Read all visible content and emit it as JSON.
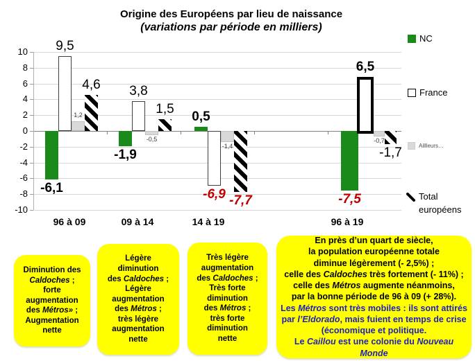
{
  "title": {
    "line1": "Origine des Européens par lieu de naissance",
    "line2": "(variations par période en milliers)"
  },
  "legend": {
    "nc": "NC",
    "france": "France",
    "ailleurs": "Aillleurs…",
    "total_line1": "Total",
    "total_line2": "européens"
  },
  "colors": {
    "nc_green": "#1a8a1a",
    "ailleurs_gray": "#d9d9d9",
    "red_label": "#c00000",
    "blue_text": "#2020c0",
    "note_yellow": "#ffff00"
  },
  "chart_data": {
    "type": "bar",
    "title": "Origine des Européens par lieu de naissance",
    "subtitle": "(variations par période en milliers)",
    "categories": [
      "96 à 09",
      "09 à 14",
      "14 à 19",
      "96 à 19"
    ],
    "series": [
      {
        "name": "NC",
        "color": "#1a8a1a",
        "values": [
          -6.1,
          -1.9,
          0.5,
          -7.5
        ],
        "labels": [
          "-6,1",
          "-1,9",
          "0,5",
          "-7,5"
        ],
        "label_styles": [
          "bold",
          "bold",
          "bold",
          "red"
        ]
      },
      {
        "name": "France",
        "color": "#ffffff",
        "values": [
          9.5,
          3.8,
          -6.9,
          6.5
        ],
        "labels": [
          "9,5",
          "3,8",
          "-6,9",
          "6,5"
        ],
        "label_styles": [
          "big",
          "big",
          "red",
          "bold"
        ]
      },
      {
        "name": "Aillleurs…",
        "color": "#d9d9d9",
        "values": [
          1.2,
          -0.5,
          -1.4,
          -0.7
        ],
        "labels": [
          "1,2",
          "-0,5",
          "-1,4",
          "-0,7"
        ],
        "label_styles": [
          "small",
          "small",
          "small",
          "small"
        ]
      },
      {
        "name": "Total européens",
        "pattern": "diagonal-stripes",
        "values": [
          4.6,
          1.5,
          -7.7,
          -1.7
        ],
        "labels": [
          "4,6",
          "1,5",
          "-7,7",
          "-1,7"
        ],
        "label_styles": [
          "big",
          "big",
          "red",
          "big"
        ]
      }
    ],
    "ylim": [
      -10,
      10
    ],
    "ytick_step": 2,
    "yticks": [
      "10",
      "8",
      "6",
      "4",
      "2",
      "0",
      "-2",
      "-4",
      "-6",
      "-8",
      "-10"
    ],
    "grid": true,
    "legend_position": "right",
    "highlight": {
      "series_index": 1,
      "group_index": 3
    }
  },
  "boxes": [
    {
      "segments": [
        {
          "t": "Diminution des"
        },
        {
          "br": true
        },
        {
          "t": "Caldoches",
          "i": true
        },
        {
          "t": " ;"
        },
        {
          "br": true
        },
        {
          "t": "forte"
        },
        {
          "br": true
        },
        {
          "t": "augmentation"
        },
        {
          "br": true
        },
        {
          "t": "des  "
        },
        {
          "t": "Métros»",
          "i": true
        },
        {
          "t": " ;"
        },
        {
          "br": true
        },
        {
          "t": "Augmentation"
        },
        {
          "br": true
        },
        {
          "t": "nette"
        }
      ]
    },
    {
      "segments": [
        {
          "t": "Légère"
        },
        {
          "br": true
        },
        {
          "t": "diminution"
        },
        {
          "br": true
        },
        {
          "t": "des "
        },
        {
          "t": "Caldoches",
          "i": true
        },
        {
          "t": " ;"
        },
        {
          "br": true
        },
        {
          "t": "Légère"
        },
        {
          "br": true
        },
        {
          "t": "augmentation"
        },
        {
          "br": true
        },
        {
          "t": "des "
        },
        {
          "t": "Métros",
          "i": true
        },
        {
          "t": "  ;"
        },
        {
          "br": true
        },
        {
          "t": "très légère"
        },
        {
          "br": true
        },
        {
          "t": "augmentation"
        },
        {
          "br": true
        },
        {
          "t": "nette"
        }
      ]
    },
    {
      "segments": [
        {
          "t": "Très légère"
        },
        {
          "br": true
        },
        {
          "t": "augmentation"
        },
        {
          "br": true
        },
        {
          "t": "des "
        },
        {
          "t": "Caldoches",
          "i": true
        },
        {
          "t": " ;"
        },
        {
          "br": true
        },
        {
          "t": "Très forte"
        },
        {
          "br": true
        },
        {
          "t": "diminution"
        },
        {
          "br": true
        },
        {
          "t": "des "
        },
        {
          "t": "Métros",
          "i": true
        },
        {
          "t": " ;"
        },
        {
          "br": true
        },
        {
          "t": "très forte"
        },
        {
          "br": true
        },
        {
          "t": "diminution"
        },
        {
          "br": true
        },
        {
          "t": "nette"
        }
      ]
    },
    {
      "segments": [
        {
          "t": "En près d’un quart de siècle,"
        },
        {
          "br": true
        },
        {
          "t": "la population européenne totale"
        },
        {
          "br": true
        },
        {
          "t": "diminue légèrement (- 2,5%) ;"
        },
        {
          "br": true
        },
        {
          "t": "celle des "
        },
        {
          "t": "Caldoches",
          "i": true
        },
        {
          "t": " très fortement (- 11%) ;"
        },
        {
          "br": true
        },
        {
          "t": "celle des "
        },
        {
          "t": "Métros",
          "i": true
        },
        {
          "t": " augmente néanmoins,"
        },
        {
          "br": true
        },
        {
          "t": "par la bonne période de 96 à 09 (+ 28%)."
        },
        {
          "br": true
        },
        {
          "t": "Les ",
          "c": "#2020c0"
        },
        {
          "t": "Métros",
          "i": true,
          "c": "#2020c0"
        },
        {
          "t": " sont très mobiles : ils sont attirés",
          "c": "#2020c0"
        },
        {
          "br": true
        },
        {
          "t": "par ",
          "c": "#2020c0"
        },
        {
          "t": "l’Eldorado",
          "i": true,
          "c": "#2020c0"
        },
        {
          "t": ", mais fuient en temps de crise",
          "c": "#2020c0"
        },
        {
          "br": true
        },
        {
          "t": "(économique et politique.",
          "c": "#2020c0"
        },
        {
          "br": true
        },
        {
          "t": "Le ",
          "c": "#2020c0"
        },
        {
          "t": "Caillou",
          "i": true,
          "c": "#2020c0"
        },
        {
          "t": " est une colonie du ",
          "c": "#2020c0"
        },
        {
          "t": "Nouveau Monde",
          "i": true,
          "c": "#2020c0"
        }
      ]
    }
  ]
}
